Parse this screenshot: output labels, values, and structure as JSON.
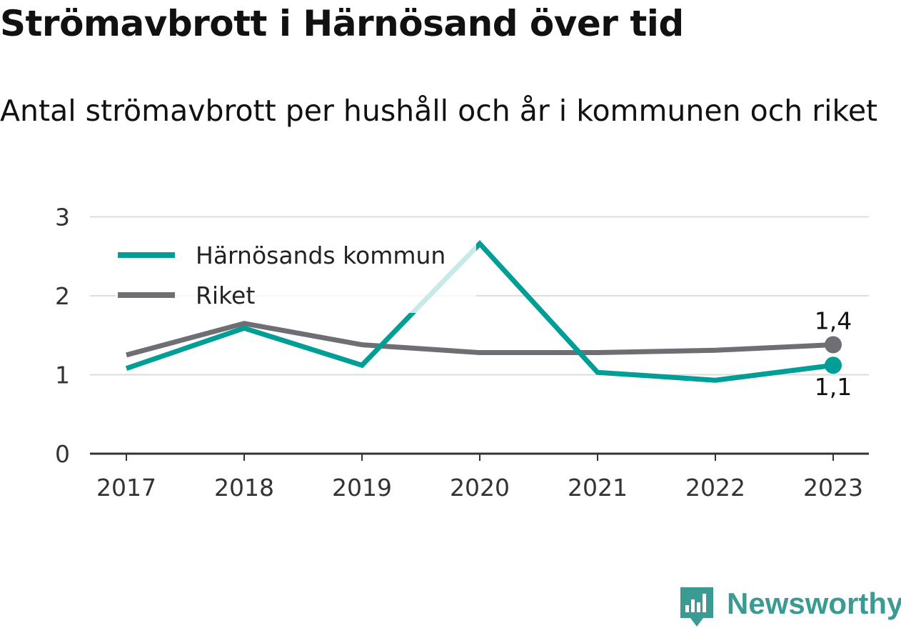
{
  "header": {
    "title": "Strömavbrott i Härnösand över tid",
    "subtitle": "Antal strömavbrott per hushåll och år i kommunen och riket"
  },
  "chart_data": {
    "type": "line",
    "title": "Strömavbrott i Härnösand över tid",
    "subtitle": "Antal strömavbrott per hushåll och år i kommunen och riket",
    "x": [
      "2017",
      "2018",
      "2019",
      "2020",
      "2021",
      "2022",
      "2023"
    ],
    "y_ticks": [
      "0",
      "1",
      "2",
      "3"
    ],
    "ylim": [
      0,
      3
    ],
    "grid": true,
    "legend_position": "top-left",
    "series": [
      {
        "name": "Härnösands kommun",
        "color": "#009e96",
        "values": [
          1.08,
          1.59,
          1.12,
          2.66,
          1.03,
          0.93,
          1.12
        ],
        "end_label": "1,1"
      },
      {
        "name": "Riket",
        "color": "#6f6e74",
        "values": [
          1.25,
          1.65,
          1.38,
          1.28,
          1.28,
          1.31,
          1.38
        ],
        "end_label": "1,4"
      }
    ]
  },
  "brand": {
    "name": "Newsworthy",
    "color": "#3b9b93",
    "icon": "bar-chart-bubble-icon"
  }
}
